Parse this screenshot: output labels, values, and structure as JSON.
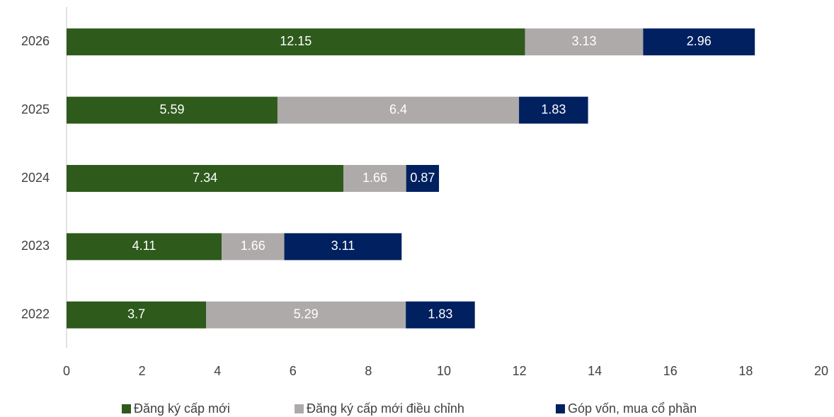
{
  "chart_data": {
    "type": "bar",
    "orientation": "horizontal",
    "stacked": true,
    "categories": [
      "2026",
      "2025",
      "2024",
      "2023",
      "2022"
    ],
    "series": [
      {
        "name": "Đăng ký cấp mới",
        "color": "#2e5a1c",
        "values": [
          12.15,
          5.59,
          7.34,
          4.11,
          3.7
        ]
      },
      {
        "name": "Đăng ký cấp mới điều chỉnh",
        "color": "#aeaaaa",
        "values": [
          3.13,
          6.4,
          1.66,
          1.66,
          5.29
        ]
      },
      {
        "name": "Góp vốn, mua cổ phần",
        "color": "#002060",
        "values": [
          2.96,
          1.83,
          0.87,
          3.11,
          1.83
        ]
      }
    ],
    "xlim": [
      0,
      20
    ],
    "xticks": [
      0,
      2,
      4,
      6,
      8,
      10,
      12,
      14,
      16,
      18,
      20
    ],
    "grid": false,
    "legend": "bottom"
  }
}
